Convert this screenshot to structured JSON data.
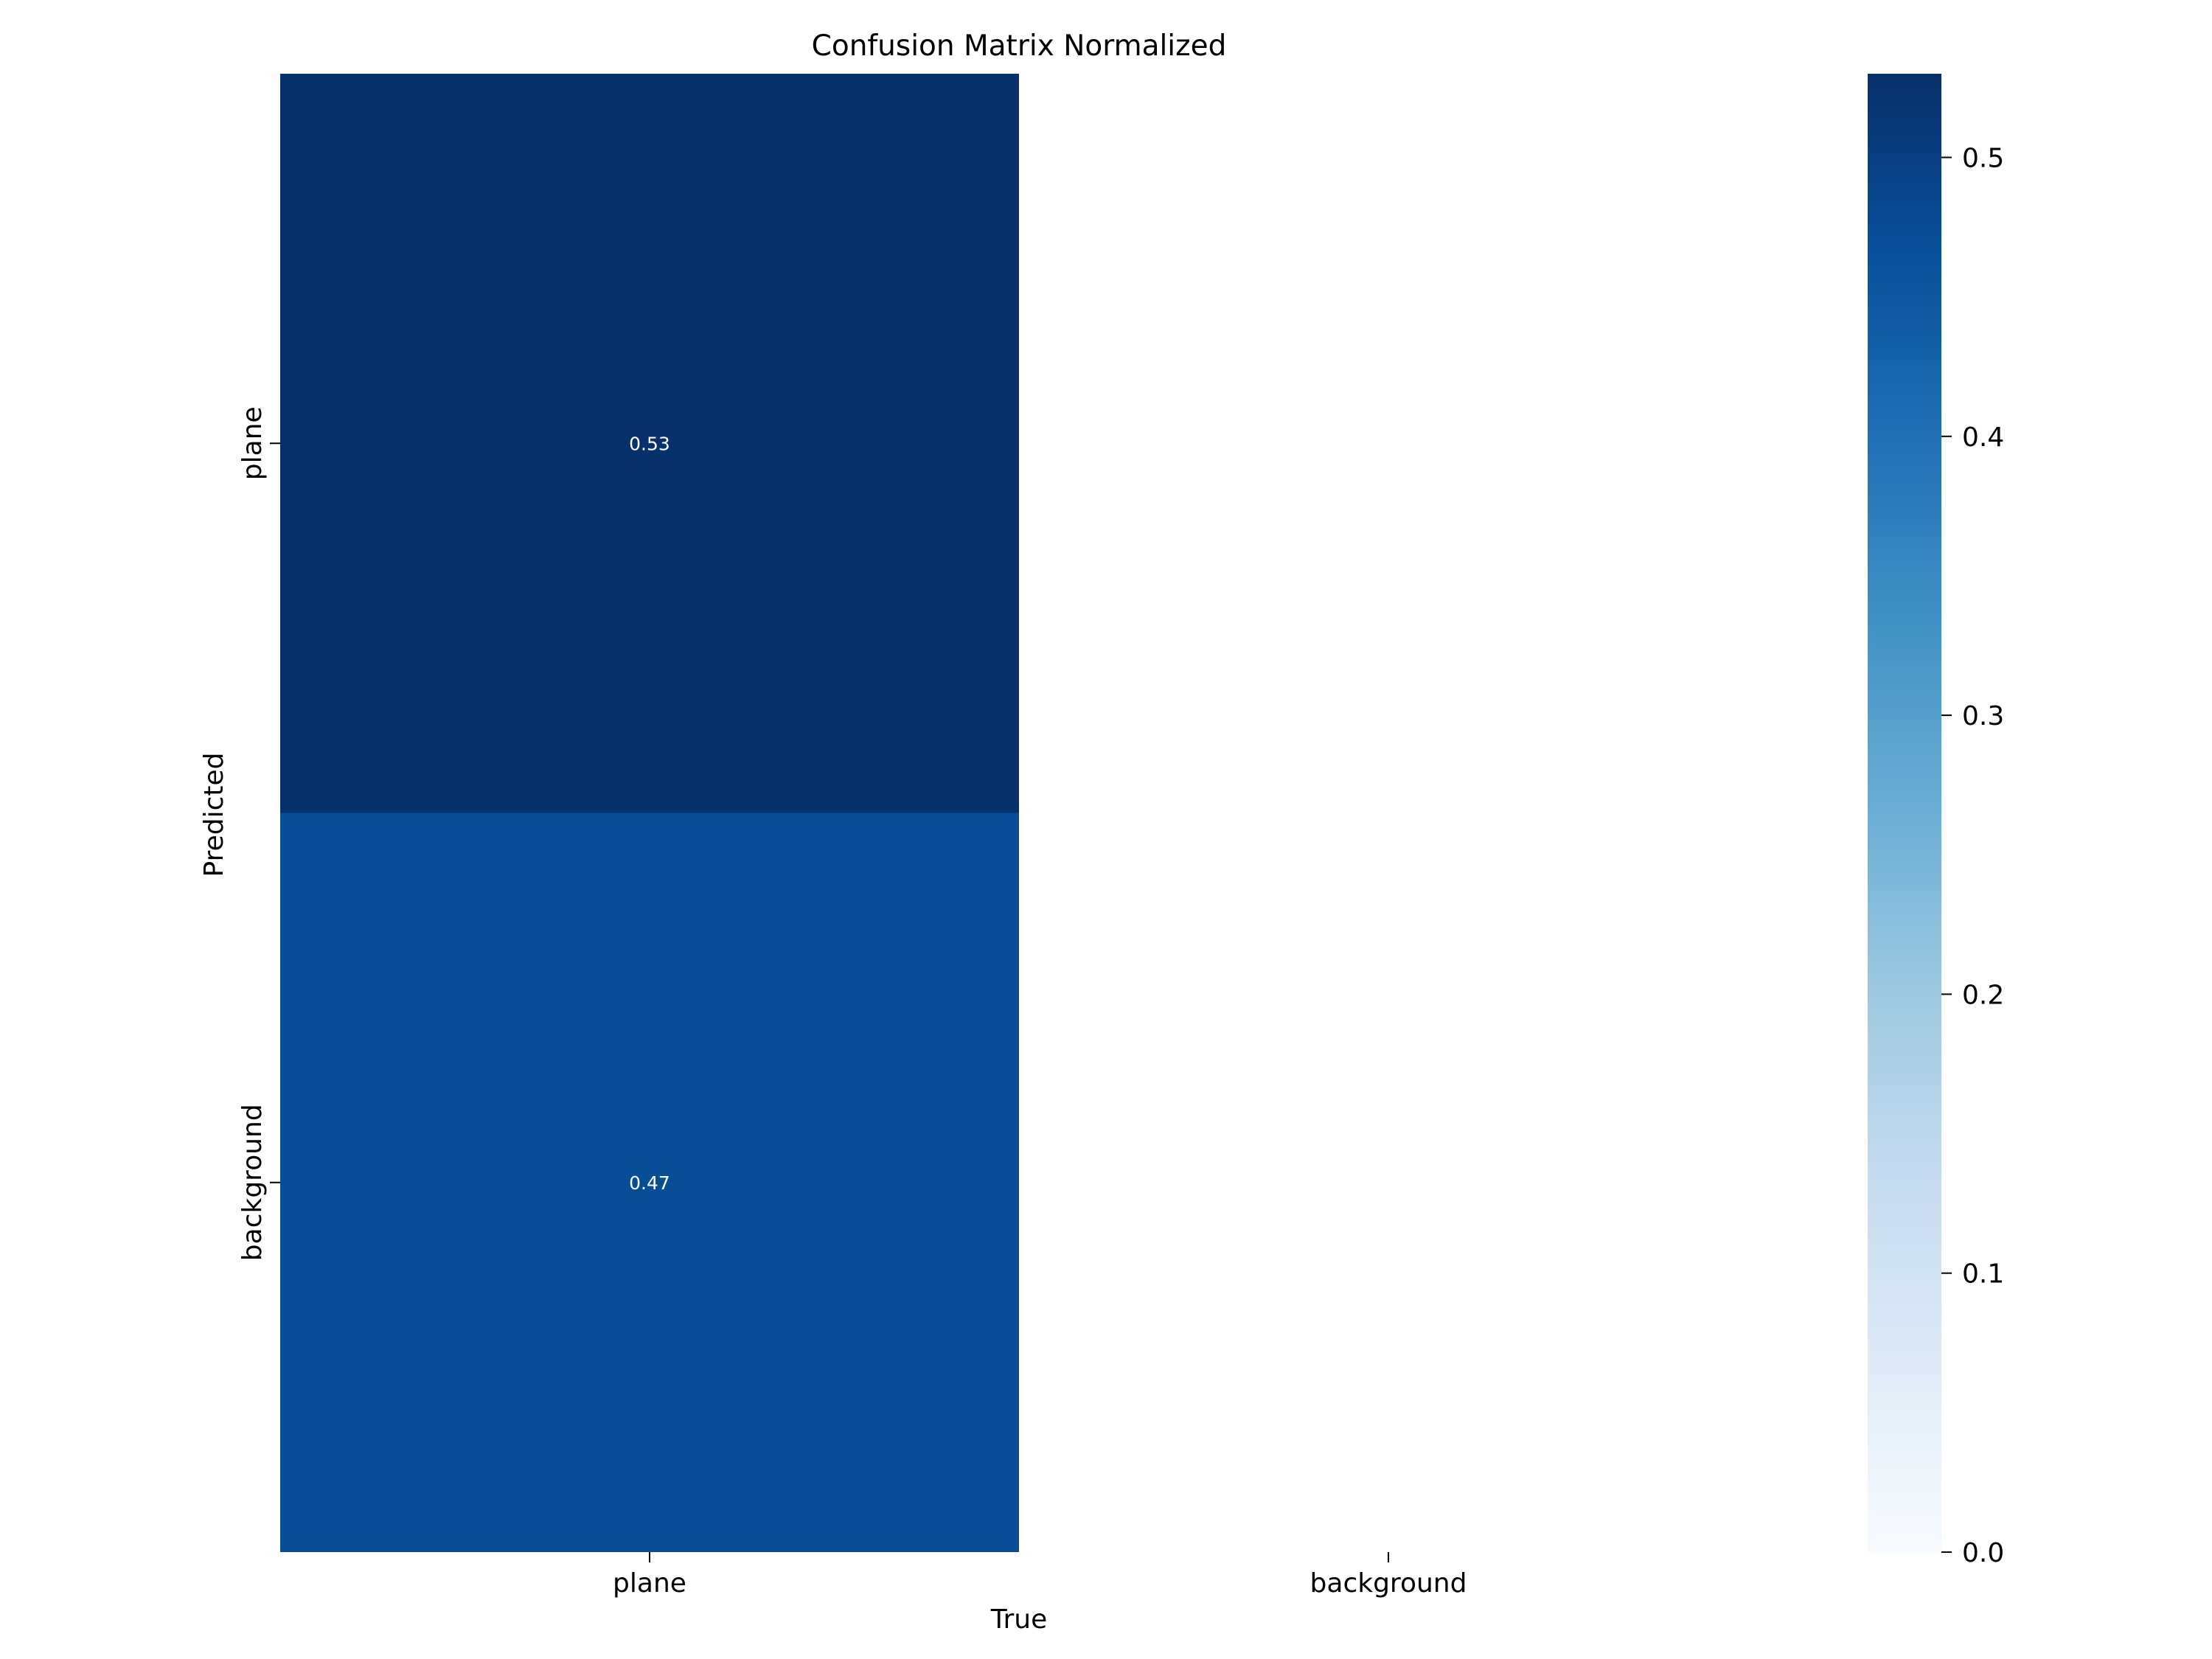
{
  "chart_data": {
    "type": "heatmap",
    "title": "Confusion Matrix Normalized",
    "xlabel": "True",
    "ylabel": "Predicted",
    "x_categories": [
      "plane",
      "background"
    ],
    "y_categories": [
      "plane",
      "background"
    ],
    "cells": [
      {
        "row": 0,
        "col": 0,
        "value": 0.53,
        "label": "0.53"
      },
      {
        "row": 1,
        "col": 0,
        "value": 0.47,
        "label": "0.47"
      }
    ],
    "colorbar": {
      "colormap": "Blues",
      "range": [
        0,
        0.53
      ],
      "ticks": [
        0.0,
        0.1,
        0.2,
        0.3,
        0.4,
        0.5
      ],
      "tick_labels": [
        "0.0",
        "0.1",
        "0.2",
        "0.3",
        "0.4",
        "0.5"
      ]
    },
    "grid": false
  }
}
